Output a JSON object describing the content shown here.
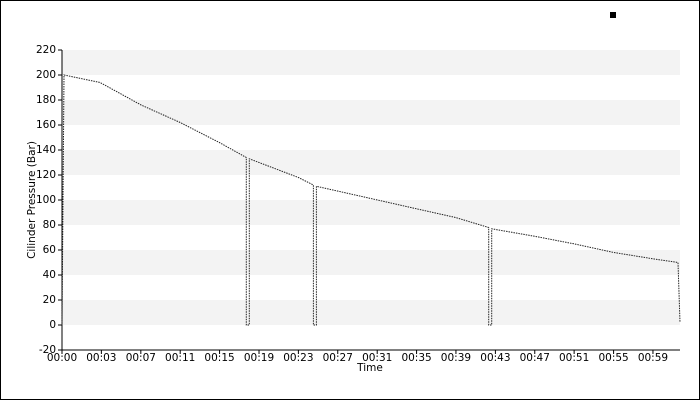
{
  "chart_data": {
    "type": "line",
    "x_label": "Time",
    "y_label": "Cilinder Pressure (Bar)",
    "x": [
      0,
      0.2,
      3.8,
      7.9,
      11.8,
      15.7,
      18.4,
      18.4,
      18.7,
      18.7,
      23.6,
      25.1,
      25.1,
      25.4,
      25.4,
      31.5,
      35.4,
      39.3,
      42.6,
      42.6,
      42.9,
      42.9,
      47.2,
      51.1,
      55.1,
      59,
      61.5,
      61.7
    ],
    "series": [
      {
        "color": "#222222",
        "values": [
          0,
          200,
          194,
          176,
          162,
          146,
          134,
          0,
          0,
          133,
          118,
          112,
          0,
          0,
          111,
          100,
          93,
          86,
          78,
          0,
          0,
          77,
          71,
          65,
          58,
          53,
          50,
          2
        ]
      }
    ],
    "xlim": [
      0,
      61.7
    ],
    "xticks": [
      {
        "value": 0,
        "label": "00:00"
      },
      {
        "value": 3.93,
        "label": "00:03"
      },
      {
        "value": 7.87,
        "label": "00:07"
      },
      {
        "value": 11.8,
        "label": "00:11"
      },
      {
        "value": 15.73,
        "label": "00:15"
      },
      {
        "value": 19.67,
        "label": "00:19"
      },
      {
        "value": 23.6,
        "label": "00:23"
      },
      {
        "value": 27.53,
        "label": "00:27"
      },
      {
        "value": 31.47,
        "label": "00:31"
      },
      {
        "value": 35.4,
        "label": "00:35"
      },
      {
        "value": 39.33,
        "label": "00:39"
      },
      {
        "value": 43.27,
        "label": "00:43"
      },
      {
        "value": 47.2,
        "label": "00:47"
      },
      {
        "value": 51.13,
        "label": "00:51"
      },
      {
        "value": 55.07,
        "label": "00:55"
      },
      {
        "value": 59,
        "label": "00:59"
      }
    ],
    "ylim": [
      -20,
      220
    ],
    "yticks": [
      -20,
      0,
      20,
      40,
      60,
      80,
      100,
      120,
      140,
      160,
      180,
      200,
      220
    ],
    "grid": "bands",
    "legend": "top-right"
  }
}
